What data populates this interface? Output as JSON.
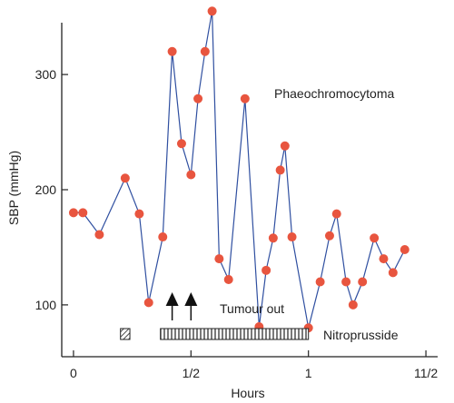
{
  "chart_data": {
    "type": "line",
    "title": "",
    "xlabel": "Hours",
    "ylabel": "SBP (mmHg)",
    "xlim": [
      -0.05,
      1.55
    ],
    "ylim": [
      55,
      345
    ],
    "x_ticks": [
      {
        "value": 0,
        "label": "0"
      },
      {
        "value": 0.5,
        "label": "1/2"
      },
      {
        "value": 1,
        "label": "1"
      },
      {
        "value": 1.5,
        "label": "11/2"
      }
    ],
    "y_ticks": [
      {
        "value": 100,
        "label": "100"
      },
      {
        "value": 200,
        "label": "200"
      },
      {
        "value": 300,
        "label": "300"
      }
    ],
    "grid": false,
    "line_color": "#2f4fa0",
    "marker_color": "#e8553f",
    "series": [
      {
        "x": [
          0.0,
          0.04,
          0.11,
          0.22,
          0.28,
          0.32,
          0.38,
          0.42,
          0.46,
          0.5,
          0.53,
          0.56,
          0.59,
          0.62,
          0.66,
          0.73,
          0.79,
          0.82,
          0.85,
          0.88,
          0.9,
          0.93,
          1.0,
          1.05,
          1.09,
          1.12,
          1.16,
          1.19,
          1.23,
          1.28,
          1.32,
          1.36,
          1.41
        ],
        "y": [
          180,
          180,
          161,
          210,
          179,
          102,
          159,
          320,
          240,
          213,
          279,
          320,
          355,
          140,
          122,
          279,
          81,
          130,
          158,
          217,
          238,
          159,
          80,
          120,
          160,
          179,
          120,
          100,
          120,
          158,
          140,
          128,
          148
        ]
      }
    ],
    "annotations": {
      "series_label": "Phaeochromocytoma",
      "tumour_out_label": "Tumour out",
      "tumour_out_times": [
        0.42,
        0.5
      ],
      "nitroprusside_label": "Nitroprusside",
      "nitroprusside_short": [
        0.2,
        0.24
      ],
      "nitroprusside_long": [
        0.37,
        1.0
      ]
    }
  }
}
